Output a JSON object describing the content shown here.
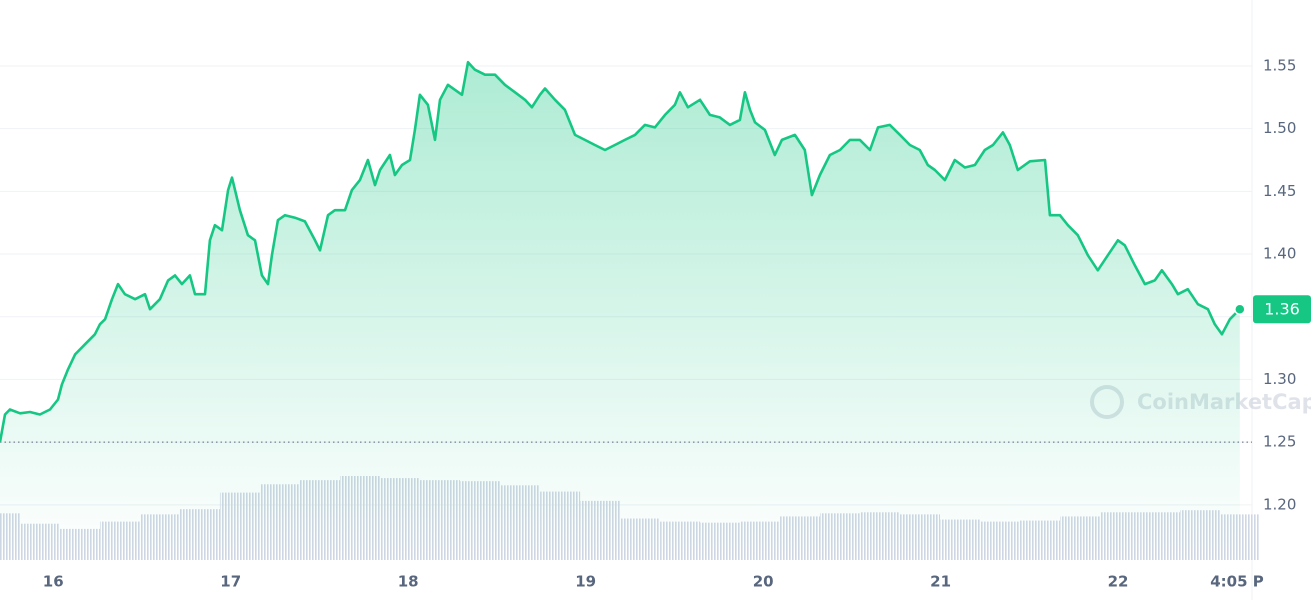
{
  "chart_data": {
    "type": "line",
    "color": "#16c784",
    "grid": true,
    "xlim": [
      15.7,
      22.687
    ],
    "ylim": [
      1.156,
      1.6026
    ],
    "xticks": [
      16,
      17,
      18,
      19,
      20,
      21,
      22,
      {
        "value": 22.67,
        "label": "4:05 P"
      }
    ],
    "yticks": [
      {
        "value": 1.2,
        "label": "1.20"
      },
      1.25,
      {
        "value": 1.3,
        "label": "1.30"
      },
      1.35,
      {
        "value": 1.4,
        "label": "1.40"
      },
      1.45,
      {
        "value": 1.5,
        "label": "1.50"
      },
      1.55
    ],
    "x": [
      15.7,
      15.728,
      15.756,
      15.813,
      15.869,
      15.925,
      15.982,
      16.027,
      16.049,
      16.083,
      16.123,
      16.179,
      16.235,
      16.263,
      16.292,
      16.331,
      16.365,
      16.404,
      16.461,
      16.517,
      16.545,
      16.601,
      16.647,
      16.686,
      16.725,
      16.77,
      16.799,
      16.855,
      16.883,
      16.911,
      16.951,
      16.985,
      17.007,
      17.052,
      17.097,
      17.137,
      17.176,
      17.21,
      17.232,
      17.266,
      17.306,
      17.362,
      17.418,
      17.475,
      17.503,
      17.548,
      17.587,
      17.644,
      17.683,
      17.728,
      17.773,
      17.813,
      17.841,
      17.897,
      17.925,
      17.965,
      18.01,
      18.038,
      18.066,
      18.111,
      18.151,
      18.179,
      18.224,
      18.263,
      18.303,
      18.337,
      18.376,
      18.433,
      18.489,
      18.545,
      18.602,
      18.658,
      18.697,
      18.742,
      18.771,
      18.827,
      18.883,
      18.94,
      18.996,
      19.052,
      19.109,
      19.165,
      19.221,
      19.278,
      19.334,
      19.39,
      19.447,
      19.503,
      19.531,
      19.576,
      19.644,
      19.7,
      19.756,
      19.813,
      19.869,
      19.897,
      19.926,
      19.954,
      20.01,
      20.066,
      20.106,
      20.179,
      20.235,
      20.275,
      20.32,
      20.376,
      20.433,
      20.489,
      20.545,
      20.602,
      20.647,
      20.714,
      20.771,
      20.827,
      20.883,
      20.928,
      20.968,
      21.024,
      21.08,
      21.137,
      21.193,
      21.249,
      21.295,
      21.351,
      21.39,
      21.435,
      21.503,
      21.588,
      21.616,
      21.672,
      21.717,
      21.773,
      21.83,
      21.886,
      21.942,
      21.999,
      22.038,
      22.094,
      22.151,
      22.207,
      22.247,
      22.303,
      22.337,
      22.393,
      22.45,
      22.506,
      22.545,
      22.585,
      22.63,
      22.686
    ],
    "values": [
      1.25,
      1.272,
      1.276,
      1.273,
      1.274,
      1.272,
      1.276,
      1.284,
      1.296,
      1.308,
      1.32,
      1.328,
      1.336,
      1.344,
      1.348,
      1.364,
      1.376,
      1.368,
      1.364,
      1.368,
      1.356,
      1.364,
      1.379,
      1.383,
      1.376,
      1.383,
      1.368,
      1.368,
      1.411,
      1.423,
      1.419,
      1.451,
      1.461,
      1.435,
      1.415,
      1.411,
      1.383,
      1.376,
      1.399,
      1.427,
      1.431,
      1.429,
      1.426,
      1.411,
      1.403,
      1.431,
      1.435,
      1.435,
      1.451,
      1.459,
      1.475,
      1.455,
      1.467,
      1.479,
      1.463,
      1.471,
      1.475,
      1.499,
      1.527,
      1.519,
      1.491,
      1.523,
      1.535,
      1.531,
      1.527,
      1.553,
      1.547,
      1.543,
      1.543,
      1.535,
      1.529,
      1.523,
      1.517,
      1.527,
      1.532,
      1.523,
      1.515,
      1.495,
      1.491,
      1.487,
      1.483,
      1.487,
      1.491,
      1.495,
      1.503,
      1.501,
      1.511,
      1.519,
      1.529,
      1.517,
      1.523,
      1.511,
      1.509,
      1.503,
      1.507,
      1.529,
      1.515,
      1.505,
      1.499,
      1.479,
      1.491,
      1.495,
      1.483,
      1.447,
      1.463,
      1.479,
      1.483,
      1.491,
      1.491,
      1.483,
      1.501,
      1.503,
      1.495,
      1.487,
      1.483,
      1.471,
      1.467,
      1.459,
      1.475,
      1.469,
      1.471,
      1.483,
      1.487,
      1.497,
      1.487,
      1.467,
      1.474,
      1.475,
      1.431,
      1.431,
      1.423,
      1.415,
      1.399,
      1.387,
      1.399,
      1.411,
      1.407,
      1.391,
      1.376,
      1.379,
      1.387,
      1.376,
      1.368,
      1.372,
      1.36,
      1.356,
      1.344,
      1.336,
      1.348,
      1.356
    ],
    "current_label": "1.36",
    "volume": {
      "x": [
        15.7,
        15.925,
        16.151,
        16.376,
        16.602,
        16.827,
        17.052,
        17.278,
        17.503,
        17.729,
        17.954,
        18.179,
        18.405,
        18.63,
        18.856,
        19.081,
        19.306,
        19.532,
        19.757,
        19.983,
        20.208,
        20.433,
        20.659,
        20.884,
        21.11,
        21.335,
        21.56,
        21.786,
        22.011,
        22.237,
        22.462,
        22.687
      ],
      "values": [
        45,
        35,
        30,
        37,
        44,
        49,
        65,
        73,
        77,
        81,
        79,
        77,
        76,
        72,
        66,
        57,
        40,
        37,
        36,
        37,
        42,
        45,
        46,
        44,
        39,
        37,
        38,
        42,
        46,
        46,
        48,
        44
      ]
    },
    "watermark": "CoinMarketCap"
  }
}
